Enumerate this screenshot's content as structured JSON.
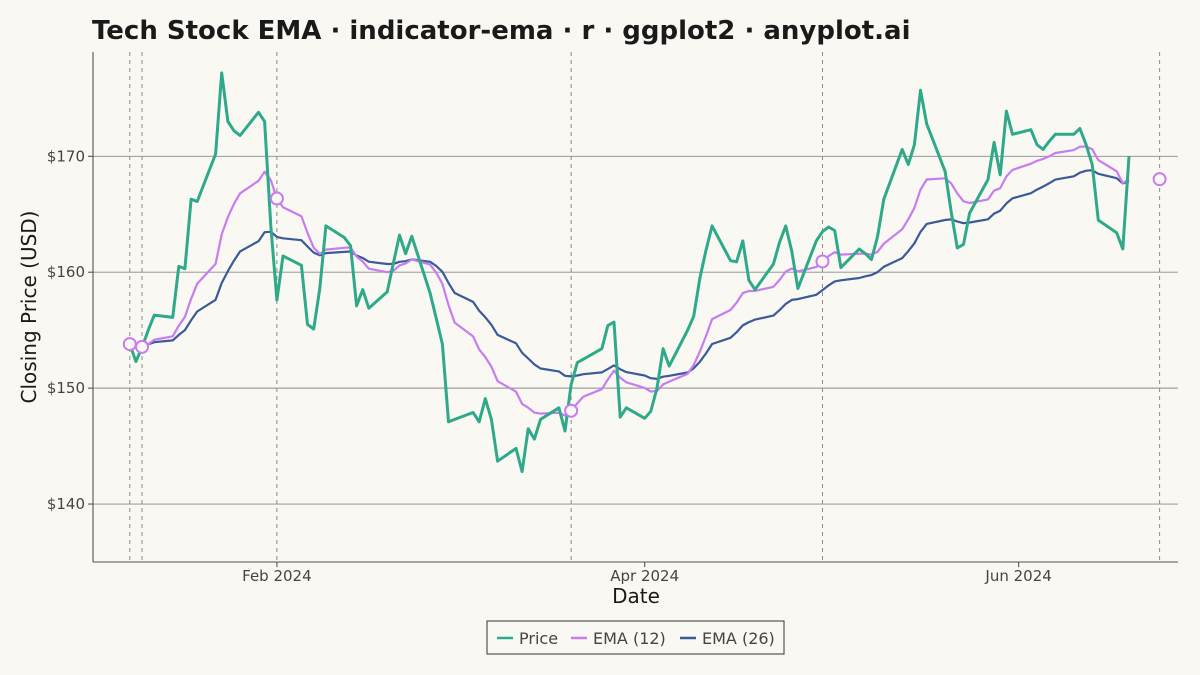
{
  "chart_data": {
    "type": "line",
    "title": "Tech Stock EMA · indicator-ema · r · ggplot2 · anyplot.ai",
    "xlabel": "Date",
    "ylabel": "Closing Price (USD)",
    "x_ticks": [
      {
        "label": "Feb 2024",
        "date": "2024-02-01"
      },
      {
        "label": "Apr 2024",
        "date": "2024-04-01"
      },
      {
        "label": "Jun 2024",
        "date": "2024-06-01"
      }
    ],
    "y_ticks": [
      {
        "label": "$140",
        "value": 140
      },
      {
        "label": "$150",
        "value": 150
      },
      {
        "label": "$160",
        "value": 160
      },
      {
        "label": "$170",
        "value": 170
      }
    ],
    "xlim": [
      "2024-01-02",
      "2024-06-27"
    ],
    "ylim": [
      135,
      179
    ],
    "grid": "horizontal",
    "legend_position": "bottom",
    "colors": {
      "price": "#2EA98A",
      "ema12": "#C77CF0",
      "ema26": "#3A5A98",
      "background": "#FAF8F2"
    },
    "series": [
      {
        "name": "Price",
        "color": "#2EA98A",
        "points": [
          [
            "2024-01-08",
            153.8
          ],
          [
            "2024-01-09",
            152.3
          ],
          [
            "2024-01-10",
            153.5
          ],
          [
            "2024-01-11",
            155.0
          ],
          [
            "2024-01-12",
            156.3
          ],
          [
            "2024-01-15",
            156.1
          ],
          [
            "2024-01-16",
            160.5
          ],
          [
            "2024-01-17",
            160.3
          ],
          [
            "2024-01-18",
            166.3
          ],
          [
            "2024-01-19",
            166.1
          ],
          [
            "2024-01-22",
            170.2
          ],
          [
            "2024-01-23",
            177.2
          ],
          [
            "2024-01-24",
            173.0
          ],
          [
            "2024-01-25",
            172.2
          ],
          [
            "2024-01-26",
            171.8
          ],
          [
            "2024-01-29",
            173.8
          ],
          [
            "2024-01-30",
            173.0
          ],
          [
            "2024-01-31",
            164.0
          ],
          [
            "2024-02-01",
            157.6
          ],
          [
            "2024-02-02",
            161.4
          ],
          [
            "2024-02-05",
            160.6
          ],
          [
            "2024-02-06",
            155.5
          ],
          [
            "2024-02-07",
            155.1
          ],
          [
            "2024-02-08",
            158.6
          ],
          [
            "2024-02-09",
            164.0
          ],
          [
            "2024-02-12",
            163.0
          ],
          [
            "2024-02-13",
            162.3
          ],
          [
            "2024-02-14",
            157.1
          ],
          [
            "2024-02-15",
            158.5
          ],
          [
            "2024-02-16",
            156.9
          ],
          [
            "2024-02-19",
            158.3
          ],
          [
            "2024-02-20",
            160.8
          ],
          [
            "2024-02-21",
            163.2
          ],
          [
            "2024-02-22",
            161.6
          ],
          [
            "2024-02-23",
            163.1
          ],
          [
            "2024-02-26",
            158.2
          ],
          [
            "2024-02-27",
            156.0
          ],
          [
            "2024-02-28",
            153.8
          ],
          [
            "2024-02-29",
            147.1
          ],
          [
            "2024-03-01",
            147.3
          ],
          [
            "2024-03-04",
            147.9
          ],
          [
            "2024-03-05",
            147.1
          ],
          [
            "2024-03-06",
            149.1
          ],
          [
            "2024-03-07",
            147.3
          ],
          [
            "2024-03-08",
            143.7
          ],
          [
            "2024-03-11",
            144.8
          ],
          [
            "2024-03-12",
            142.8
          ],
          [
            "2024-03-13",
            146.5
          ],
          [
            "2024-03-14",
            145.6
          ],
          [
            "2024-03-15",
            147.3
          ],
          [
            "2024-03-18",
            148.3
          ],
          [
            "2024-03-19",
            146.3
          ],
          [
            "2024-03-20",
            150.3
          ],
          [
            "2024-03-21",
            152.2
          ],
          [
            "2024-03-22",
            152.5
          ],
          [
            "2024-03-25",
            153.4
          ],
          [
            "2024-03-26",
            155.4
          ],
          [
            "2024-03-27",
            155.7
          ],
          [
            "2024-03-28",
            147.5
          ],
          [
            "2024-03-29",
            148.3
          ],
          [
            "2024-04-01",
            147.4
          ],
          [
            "2024-04-02",
            148.0
          ],
          [
            "2024-04-03",
            150.0
          ],
          [
            "2024-04-04",
            153.4
          ],
          [
            "2024-04-05",
            151.9
          ],
          [
            "2024-04-08",
            155.0
          ],
          [
            "2024-04-09",
            156.2
          ],
          [
            "2024-04-10",
            159.5
          ],
          [
            "2024-04-11",
            161.9
          ],
          [
            "2024-04-12",
            164.0
          ],
          [
            "2024-04-15",
            161.0
          ],
          [
            "2024-04-16",
            160.9
          ],
          [
            "2024-04-17",
            162.7
          ],
          [
            "2024-04-18",
            159.3
          ],
          [
            "2024-04-19",
            158.5
          ],
          [
            "2024-04-22",
            160.7
          ],
          [
            "2024-04-23",
            162.6
          ],
          [
            "2024-04-24",
            164.0
          ],
          [
            "2024-04-25",
            161.8
          ],
          [
            "2024-04-26",
            158.6
          ],
          [
            "2024-04-29",
            162.7
          ],
          [
            "2024-04-30",
            163.5
          ],
          [
            "2024-05-01",
            163.9
          ],
          [
            "2024-05-02",
            163.6
          ],
          [
            "2024-05-03",
            160.4
          ],
          [
            "2024-05-06",
            162.0
          ],
          [
            "2024-05-07",
            161.6
          ],
          [
            "2024-05-08",
            161.1
          ],
          [
            "2024-05-09",
            163.1
          ],
          [
            "2024-05-10",
            166.3
          ],
          [
            "2024-05-13",
            170.6
          ],
          [
            "2024-05-14",
            169.3
          ],
          [
            "2024-05-15",
            171.0
          ],
          [
            "2024-05-16",
            175.7
          ],
          [
            "2024-05-17",
            172.8
          ],
          [
            "2024-05-20",
            168.7
          ],
          [
            "2024-05-21",
            165.2
          ],
          [
            "2024-05-22",
            162.1
          ],
          [
            "2024-05-23",
            162.4
          ],
          [
            "2024-05-24",
            165.1
          ],
          [
            "2024-05-27",
            168.0
          ],
          [
            "2024-05-28",
            171.2
          ],
          [
            "2024-05-29",
            168.4
          ],
          [
            "2024-05-30",
            173.9
          ],
          [
            "2024-05-31",
            171.9
          ],
          [
            "2024-06-03",
            172.3
          ],
          [
            "2024-06-04",
            171.0
          ],
          [
            "2024-06-05",
            170.6
          ],
          [
            "2024-06-06",
            171.3
          ],
          [
            "2024-06-07",
            171.9
          ],
          [
            "2024-06-10",
            171.9
          ],
          [
            "2024-06-11",
            172.4
          ],
          [
            "2024-06-12",
            171.0
          ],
          [
            "2024-06-13",
            169.3
          ],
          [
            "2024-06-14",
            164.5
          ],
          [
            "2024-06-17",
            163.4
          ],
          [
            "2024-06-18",
            162.0
          ],
          [
            "2024-06-19",
            170.0
          ]
        ]
      }
    ],
    "crossover_dates": [
      "2024-01-08",
      "2024-01-10",
      "2024-02-01",
      "2024-03-20",
      "2024-04-30",
      "2024-06-24"
    ]
  }
}
